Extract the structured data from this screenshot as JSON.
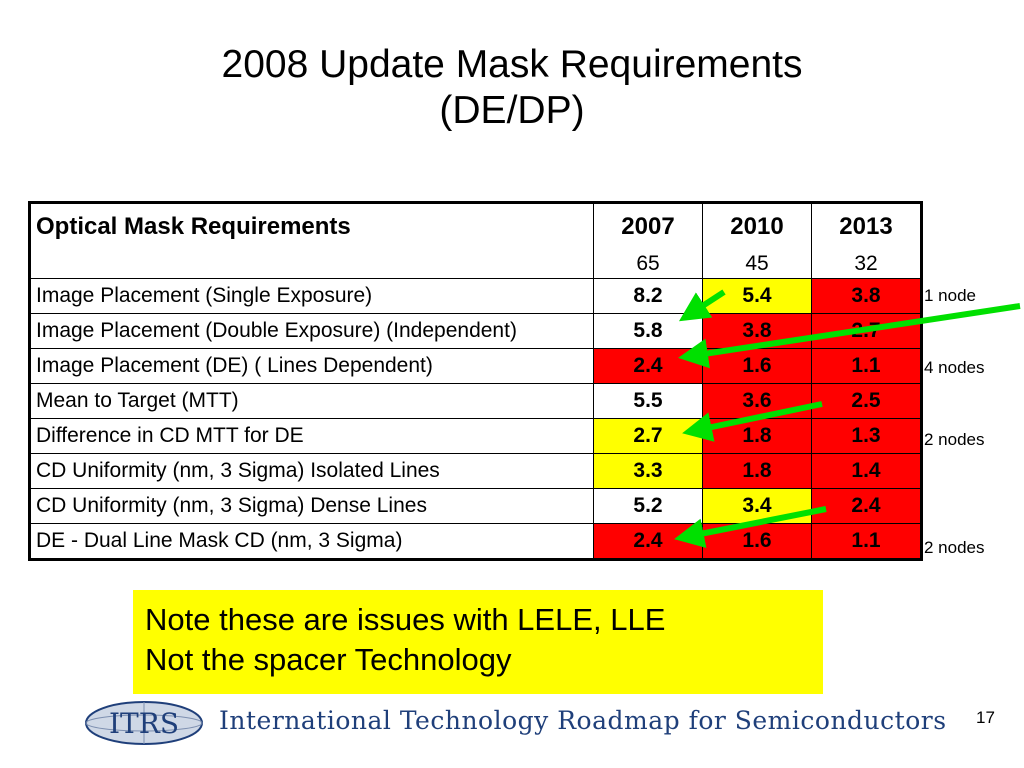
{
  "title": {
    "line1": "2008 Update Mask Requirements",
    "line2": "(DE/DP)"
  },
  "table": {
    "header": {
      "label": "Optical Mask Requirements",
      "years": [
        "2007",
        "2010",
        "2013"
      ],
      "nodes": [
        "65",
        "45",
        "32"
      ]
    },
    "rows": [
      {
        "label": "Image Placement (Single Exposure)",
        "values": [
          "8.2",
          "5.4",
          "3.8"
        ],
        "colors": [
          "#ffffff",
          "#ffff00",
          "#ff0000"
        ],
        "note": "1 node"
      },
      {
        "label": "Image Placement (Double Exposure) (Independent)",
        "values": [
          "5.8",
          "3.8",
          "2.7"
        ],
        "colors": [
          "#ffffff",
          "#ff0000",
          "#ff0000"
        ],
        "note": ""
      },
      {
        "label": "Image Placement (DE) ( Lines Dependent)",
        "values": [
          "2.4",
          "1.6",
          "1.1"
        ],
        "colors": [
          "#ff0000",
          "#ff0000",
          "#ff0000"
        ],
        "note": "4 nodes"
      },
      {
        "label": "Mean to Target (MTT)",
        "values": [
          "5.5",
          "3.6",
          "2.5"
        ],
        "colors": [
          "#ffffff",
          "#ff0000",
          "#ff0000"
        ],
        "note": ""
      },
      {
        "label": "Difference in CD MTT for DE",
        "values": [
          "2.7",
          "1.8",
          "1.3"
        ],
        "colors": [
          "#ffff00",
          "#ff0000",
          "#ff0000"
        ],
        "note": "2 nodes"
      },
      {
        "label": "CD Uniformity (nm, 3 Sigma) Isolated Lines",
        "values": [
          "3.3",
          "1.8",
          "1.4"
        ],
        "colors": [
          "#ffff00",
          "#ff0000",
          "#ff0000"
        ],
        "note": ""
      },
      {
        "label": "CD Uniformity (nm, 3 Sigma) Dense Lines",
        "values": [
          "5.2",
          "3.4",
          "2.4"
        ],
        "colors": [
          "#ffffff",
          "#ffff00",
          "#ff0000"
        ],
        "note": ""
      },
      {
        "label": "DE - Dual Line Mask CD (nm, 3 Sigma)",
        "values": [
          "2.4",
          "1.6",
          "1.1"
        ],
        "colors": [
          "#ff0000",
          "#ff0000",
          "#ff0000"
        ],
        "note": "2 nodes"
      }
    ]
  },
  "arrow_color": "#00e000",
  "callout": {
    "line1": "Note these are issues with LELE, LLE",
    "line2": "Not the spacer Technology",
    "color": "#ffff00"
  },
  "footer": {
    "logo_text": "ITRS",
    "org_name": "International Technology Roadmap for Semiconductors",
    "page_number": "17"
  }
}
